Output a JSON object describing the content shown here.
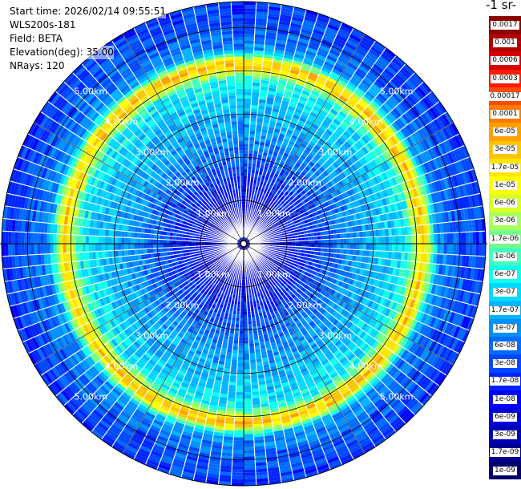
{
  "header": {
    "start_time": "Start time: 2026/02/14 09:55:51",
    "instrument": "WLS200s-181",
    "field": "Field: BETA",
    "elevation": "Elevation(deg): 35.00",
    "nrays": "NRays: 120"
  },
  "colorbar": {
    "unit_label": "-1 sr-",
    "levels": [
      "0.0017",
      "0.001",
      "0.0006",
      "0.0003",
      "0.00017",
      "0.0001",
      "6e-05",
      "3e-05",
      "1.7e-05",
      "1e-05",
      "6e-06",
      "3e-06",
      "1.7e-06",
      "1e-06",
      "6e-07",
      "3e-07",
      "1.7e-07",
      "1e-07",
      "6e-08",
      "3e-08",
      "1.7e-08",
      "1e-08",
      "6e-09",
      "3e-09",
      "1.7e-09",
      "1e-09"
    ],
    "colors": [
      "#8b0000",
      "#b00000",
      "#d80000",
      "#ff1a00",
      "#ff4d00",
      "#ff7a00",
      "#ffa000",
      "#ffc400",
      "#ffe600",
      "#ffff00",
      "#d8ff2a",
      "#a6ff5a",
      "#74ff8a",
      "#44ffba",
      "#10ffee",
      "#00d8ff",
      "#00b4ff",
      "#0090ff",
      "#006cff",
      "#0048ff",
      "#0024ff",
      "#0000ff",
      "#0000d8",
      "#0000b4",
      "#000090",
      "#00006c"
    ]
  },
  "chart_data": {
    "type": "heatmap",
    "title": "",
    "projection": "polar (PPI)",
    "field": "BETA",
    "elevation_deg": 35.0,
    "n_rays": 120,
    "max_range_km": 5.6,
    "range_ring_labels": [
      "1.00km",
      "2.00km",
      "3.00km",
      "4.00km",
      "5.00km"
    ],
    "range_rings_km": [
      1,
      2,
      3,
      4,
      5
    ],
    "color_scale": "log10",
    "color_range": [
      1e-09,
      0.0017
    ],
    "radial_profile": [
      {
        "range_km": 0.0,
        "beta": 3e-09
      },
      {
        "range_km": 1.0,
        "beta": 1e-08
      },
      {
        "range_km": 1.8,
        "beta": 3e-08
      },
      {
        "range_km": 2.5,
        "beta": 1e-07
      },
      {
        "range_km": 3.2,
        "beta": 2e-07
      },
      {
        "range_km": 3.8,
        "beta": 5e-07
      },
      {
        "range_km": 4.15,
        "beta": 3e-05
      },
      {
        "range_km": 4.5,
        "beta": 1e-07
      },
      {
        "range_km": 5.0,
        "beta": 4e-08
      },
      {
        "range_km": 5.6,
        "beta": 2e-08
      }
    ],
    "aerosol_ring": {
      "range_km": 4.15,
      "peak_beta": 3e-05,
      "weak_sectors_deg": [
        [
          60,
          130
        ],
        [
          225,
          300
        ]
      ]
    }
  }
}
